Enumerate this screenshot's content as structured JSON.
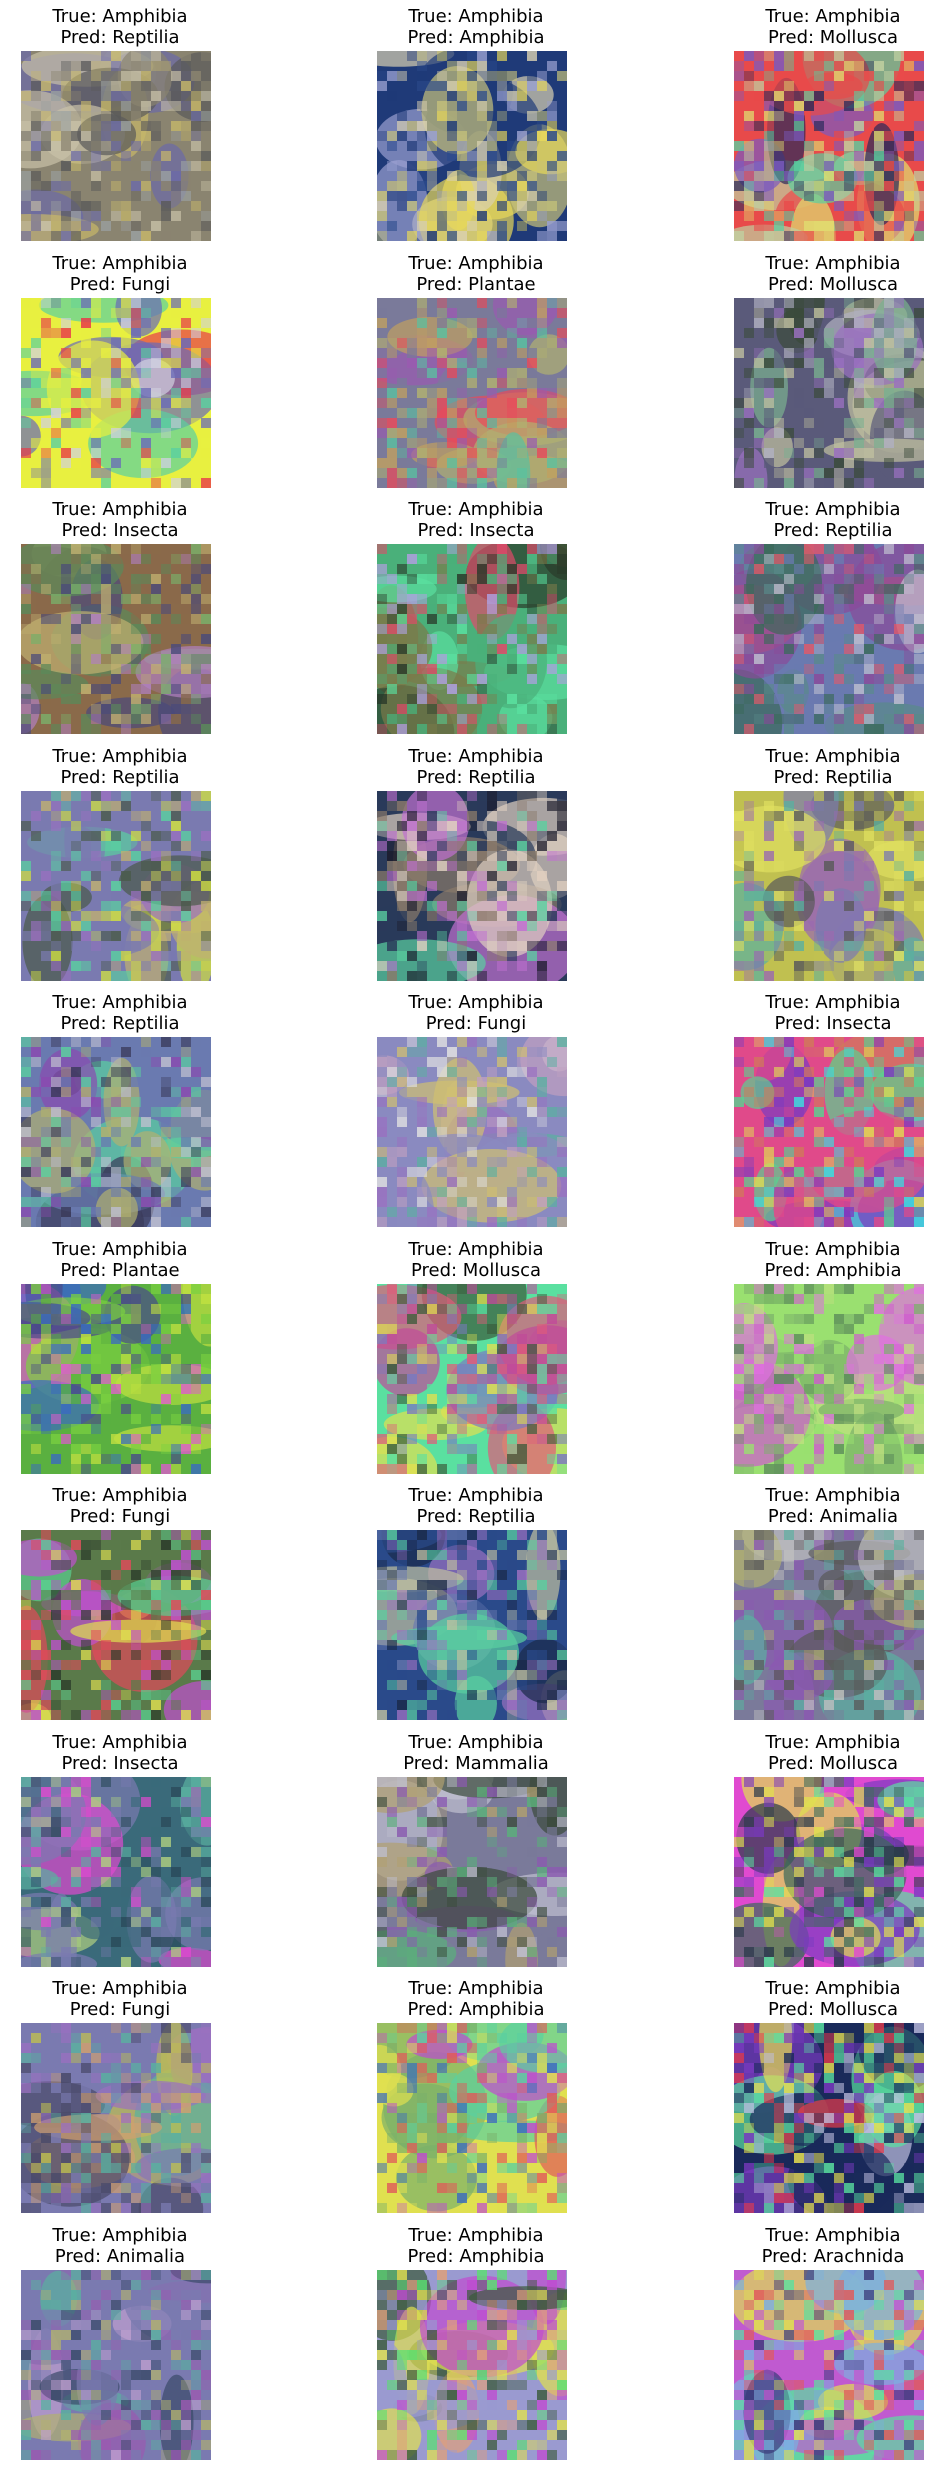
{
  "figures": [
    {
      "true_label": "True: Amphibia",
      "pred_label": "Pred: Reptilia",
      "colors": [
        "#8a8470",
        "#6b6aa8",
        "#c7b86a",
        "#9aa0a0",
        "#5a5a5a",
        "#c9c2a8"
      ]
    },
    {
      "true_label": "True: Amphibia",
      "pred_label": "Pred: Amphibia",
      "colors": [
        "#1f3a78",
        "#2b4a8c",
        "#c7c27a",
        "#d8d0b0",
        "#9aa0d0",
        "#e8d85a"
      ]
    },
    {
      "true_label": "True: Amphibia",
      "pred_label": "Pred: Mollusca",
      "colors": [
        "#e84a4a",
        "#5ad0a0",
        "#7a5ac0",
        "#c0d0a0",
        "#2a2a5a",
        "#e0e070"
      ]
    },
    {
      "true_label": "True: Amphibia",
      "pred_label": "Pred: Fungi",
      "colors": [
        "#e8f040",
        "#e8f040",
        "#e83a4a",
        "#6a6ab8",
        "#5ad0a0",
        "#d0d0e0"
      ]
    },
    {
      "true_label": "True: Amphibia",
      "pred_label": "Pred: Plantae",
      "colors": [
        "#7a7a9a",
        "#5ac0a0",
        "#c0a060",
        "#9a5ab0",
        "#b0b070",
        "#e84a5a"
      ]
    },
    {
      "true_label": "True: Amphibia",
      "pred_label": "Pred: Mollusca",
      "colors": [
        "#5a5a7a",
        "#b0b0c0",
        "#7ab090",
        "#3a4a3a",
        "#c0c0a0",
        "#9a70c0"
      ]
    },
    {
      "true_label": "True: Amphibia",
      "pred_label": "Pred: Insecta",
      "colors": [
        "#8a6a4a",
        "#7ab06a",
        "#b080c0",
        "#5a8a5a",
        "#c0b070",
        "#4a4a7a"
      ]
    },
    {
      "true_label": "True: Amphibia",
      "pred_label": "Pred: Insecta",
      "colors": [
        "#4ab07a",
        "#e04a6a",
        "#5ae0a0",
        "#2a3a2a",
        "#b0a0e0",
        "#7a7a4a"
      ]
    },
    {
      "true_label": "True: Amphibia",
      "pred_label": "Pred: Reptilia",
      "colors": [
        "#6a7ab0",
        "#3a6a5a",
        "#c0c0d0",
        "#8a4a9a",
        "#e05a6a",
        "#5a8a8a"
      ]
    },
    {
      "true_label": "True: Amphibia",
      "pred_label": "Pred: Reptilia",
      "colors": [
        "#7a7ab0",
        "#5ad0a0",
        "#4a5a4a",
        "#c0b070",
        "#9a70c0",
        "#d0e040"
      ]
    },
    {
      "true_label": "True: Amphibia",
      "pred_label": "Pred: Reptilia",
      "colors": [
        "#2a3a5a",
        "#e0d0c0",
        "#8a7a6a",
        "#5ad0a0",
        "#c070d0",
        "#1a1a2a"
      ]
    },
    {
      "true_label": "True: Amphibia",
      "pred_label": "Pred: Reptilia",
      "colors": [
        "#c0c050",
        "#7a7ab0",
        "#5ab0a0",
        "#9a6ab0",
        "#e0e060",
        "#5a5a5a"
      ]
    },
    {
      "true_label": "True: Amphibia",
      "pred_label": "Pred: Reptilia",
      "colors": [
        "#6a7ab0",
        "#5ad0a0",
        "#c0c0d0",
        "#8a4ab0",
        "#3a3a5a",
        "#b0b070"
      ]
    },
    {
      "true_label": "True: Amphibia",
      "pred_label": "Pred: Fungi",
      "colors": [
        "#8a8ac0",
        "#c0a0c0",
        "#d0c070",
        "#5ab0a0",
        "#9a70c0",
        "#e0e0e0"
      ]
    },
    {
      "true_label": "True: Amphibia",
      "pred_label": "Pred: Insecta",
      "colors": [
        "#e04a8a",
        "#5ad090",
        "#7a3ac0",
        "#e0e050",
        "#3ae0e0",
        "#d07a5a"
      ]
    },
    {
      "true_label": "True: Amphibia",
      "pred_label": "Pred: Plantae",
      "colors": [
        "#5ab040",
        "#7ad040",
        "#3a6ac0",
        "#c0e040",
        "#e05ad0",
        "#4a4a8a"
      ]
    },
    {
      "true_label": "True: Amphibia",
      "pred_label": "Pred: Mollusca",
      "colors": [
        "#5ae0a0",
        "#c04a9a",
        "#3a5a3a",
        "#e0e050",
        "#7a7ac0",
        "#e05a7a"
      ]
    },
    {
      "true_label": "True: Amphibia",
      "pred_label": "Pred: Amphibia",
      "colors": [
        "#9ae070",
        "#d05ad0",
        "#7ab06a",
        "#c0e080",
        "#e070e0",
        "#5a8a5a"
      ]
    },
    {
      "true_label": "True: Amphibia",
      "pred_label": "Pred: Fungi",
      "colors": [
        "#5a7a4a",
        "#5ad090",
        "#c050d0",
        "#2a3a2a",
        "#e0e050",
        "#e04a5a"
      ]
    },
    {
      "true_label": "True: Amphibia",
      "pred_label": "Pred: Reptilia",
      "colors": [
        "#2a4a8a",
        "#6a7ab0",
        "#c0c0a0",
        "#5ad0a0",
        "#9a70c0",
        "#1a2a4a"
      ]
    },
    {
      "true_label": "True: Amphibia",
      "pred_label": "Pred: Animalia",
      "colors": [
        "#7a7a9a",
        "#b0b070",
        "#5ab0a0",
        "#8a5ab0",
        "#c0c0c0",
        "#5a5a5a"
      ]
    },
    {
      "true_label": "True: Amphibia",
      "pred_label": "Pred: Insecta",
      "colors": [
        "#3a6a7a",
        "#e04ad0",
        "#5ab0a0",
        "#7a7ab0",
        "#2a4a5a",
        "#b0d080"
      ]
    },
    {
      "true_label": "True: Amphibia",
      "pred_label": "Pred: Mammalia",
      "colors": [
        "#7a7a9a",
        "#5ab07a",
        "#b0a070",
        "#8a5ab0",
        "#3a4a3a",
        "#c0c0d0"
      ]
    },
    {
      "true_label": "True: Amphibia",
      "pred_label": "Pred: Mollusca",
      "colors": [
        "#e04ad0",
        "#3a6a5a",
        "#5ae0a0",
        "#7a3ac0",
        "#e0e050",
        "#2a3a4a"
      ]
    },
    {
      "true_label": "True: Amphibia",
      "pred_label": "Pred: Fungi",
      "colors": [
        "#7a7ab0",
        "#c0c050",
        "#5ab0a0",
        "#4a4a6a",
        "#d0a070",
        "#9a70c0"
      ]
    },
    {
      "true_label": "True: Amphibia",
      "pred_label": "Pred: Amphibia",
      "colors": [
        "#e0e050",
        "#5ad0a0",
        "#c04ad0",
        "#3a6ac0",
        "#e05a5a",
        "#7ab06a"
      ]
    },
    {
      "true_label": "True: Amphibia",
      "pred_label": "Pred: Mollusca",
      "colors": [
        "#1a2a5a",
        "#e83a4a",
        "#5ae0a0",
        "#c0c0e0",
        "#7a3ac0",
        "#e8e050"
      ]
    },
    {
      "true_label": "True: Amphibia",
      "pred_label": "Pred: Animalia",
      "colors": [
        "#7a7ab0",
        "#c0a0d0",
        "#5ab0a0",
        "#3a4a6a",
        "#b0b070",
        "#9a5ab0"
      ]
    },
    {
      "true_label": "True: Amphibia",
      "pred_label": "Pred: Amphibia",
      "colors": [
        "#9a9ad0",
        "#e0e050",
        "#5ae070",
        "#c04ad0",
        "#3a5a3a",
        "#e0a07a"
      ]
    },
    {
      "true_label": "True: Amphibia",
      "pred_label": "Pred: Arachnida",
      "colors": [
        "#c05ad0",
        "#5ae0a0",
        "#e0e050",
        "#e05a5a",
        "#3a3a7a",
        "#7ab0e0"
      ]
    }
  ]
}
